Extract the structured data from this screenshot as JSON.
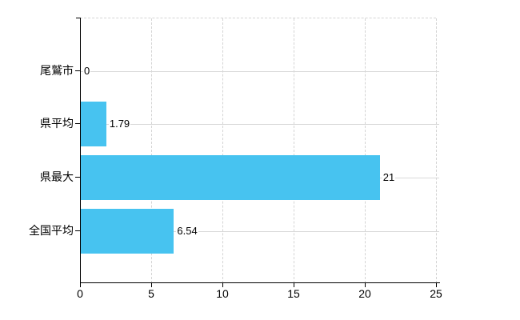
{
  "chart_data": {
    "type": "bar",
    "orientation": "horizontal",
    "title": "",
    "categories": [
      "尾鷲市",
      "県平均",
      "県最大",
      "全国平均"
    ],
    "values": [
      0,
      1.79,
      21,
      6.54
    ],
    "value_labels": [
      "0",
      "1.79",
      "21",
      "6.54"
    ],
    "x_ticks": [
      0,
      5,
      10,
      15,
      20,
      25
    ],
    "x_tick_labels": [
      "0",
      "5",
      "10",
      "15",
      "20",
      "25"
    ],
    "xlim": [
      0,
      25
    ],
    "legend_position": "none",
    "grid": "horizontal solid at category centers, vertical dashed at x ticks"
  },
  "colors": {
    "bar": "#47c3f0",
    "axis": "#000000",
    "gridline_solid": "#d9d9d9",
    "gridline_dashed": "#d3d3d3",
    "background": "#ffffff",
    "text": "#000000"
  }
}
